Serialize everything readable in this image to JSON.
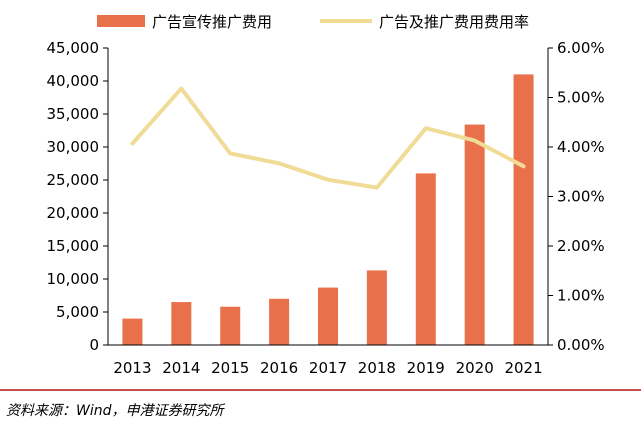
{
  "chart_data": {
    "type": "bar+line",
    "categories": [
      "2013",
      "2014",
      "2015",
      "2016",
      "2017",
      "2018",
      "2019",
      "2020",
      "2021"
    ],
    "series": [
      {
        "name": "广告宣传推广费用",
        "type": "bar",
        "axis": "left",
        "color": "#e8704a",
        "values": [
          4000,
          6500,
          5800,
          7000,
          8700,
          11300,
          26000,
          33400,
          41000
        ]
      },
      {
        "name": "广告及推广费用费用率",
        "type": "line",
        "axis": "right",
        "color": "#f0dc96",
        "values": [
          0.0407,
          0.0518,
          0.0387,
          0.0367,
          0.0334,
          0.0318,
          0.0438,
          0.0413,
          0.0361
        ]
      }
    ],
    "left_axis": {
      "min": 0,
      "max": 45000,
      "ticks": [
        "0",
        "5,000",
        "10,000",
        "15,000",
        "20,000",
        "25,000",
        "30,000",
        "35,000",
        "40,000",
        "45,000"
      ]
    },
    "right_axis": {
      "min": 0,
      "max": 0.06,
      "ticks": [
        "0.00%",
        "1.00%",
        "2.00%",
        "3.00%",
        "4.00%",
        "5.00%",
        "6.00%"
      ]
    },
    "grid": false,
    "legend": "top"
  },
  "source": "资料来源：Wind，申港证券研究所"
}
